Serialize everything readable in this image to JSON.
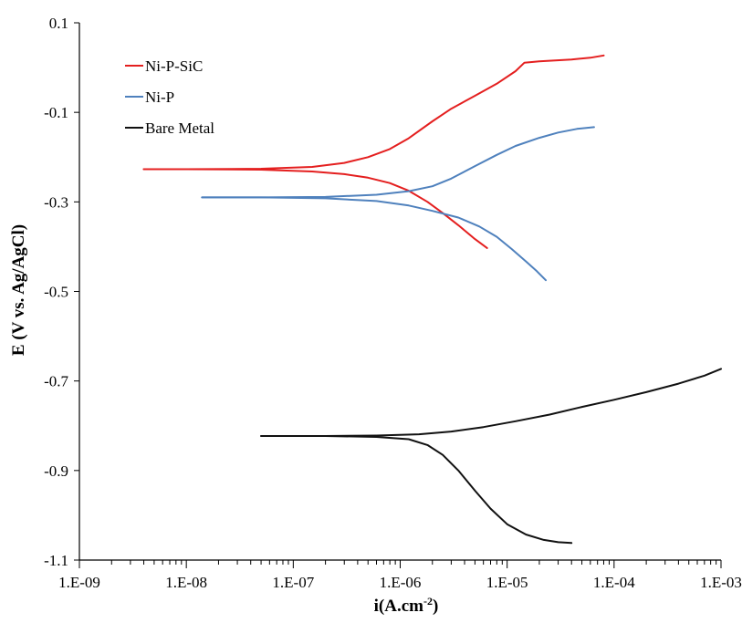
{
  "chart_data": {
    "type": "line",
    "title": "",
    "xlabel": "i(A.cm",
    "xlabel_sup": "-2",
    "xlabel_close": ")",
    "ylabel": "E (V vs. Ag/AgCl)",
    "x_scale": "log",
    "xlim": [
      1e-09,
      0.001
    ],
    "ylim": [
      -1.1,
      0.1
    ],
    "x_ticks": [
      1e-09,
      1e-08,
      1e-07,
      1e-06,
      1e-05,
      0.0001,
      0.001
    ],
    "x_tick_labels": [
      "1.E-09",
      "1.E-08",
      "1.E-07",
      "1.E-06",
      "1.E-05",
      "1.E-04",
      "1.E-03"
    ],
    "y_ticks": [
      0.1,
      -0.1,
      -0.3,
      -0.5,
      -0.7,
      -0.9,
      -1.1
    ],
    "y_tick_labels": [
      "0.1",
      "-0.1",
      "-0.3",
      "-0.5",
      "-0.7",
      "-0.9",
      "-1.1"
    ],
    "grid": false,
    "legend_position": "top-left",
    "series": [
      {
        "name": "Ni-P-SiC",
        "color": "#e41f1f",
        "branches": [
          {
            "x": [
              4e-09,
              1e-08,
              5e-08,
              1.5e-07,
              3e-07,
              5e-07,
              8e-07,
              1.2e-06,
              2e-06,
              3e-06,
              5e-06,
              8e-06,
              1.2e-05,
              1.45e-05,
              2e-05,
              4e-05,
              6e-05,
              8e-05
            ],
            "y": [
              -0.227,
              -0.227,
              -0.226,
              -0.222,
              -0.213,
              -0.2,
              -0.182,
              -0.158,
              -0.12,
              -0.092,
              -0.063,
              -0.036,
              -0.008,
              0.011,
              0.014,
              0.018,
              0.022,
              0.027
            ]
          },
          {
            "x": [
              4e-09,
              1e-08,
              5e-08,
              1.5e-07,
              3e-07,
              5e-07,
              8e-07,
              1.2e-06,
              1.8e-06,
              2.5e-06,
              3.5e-06,
              5e-06,
              6.5e-06
            ],
            "y": [
              -0.227,
              -0.227,
              -0.228,
              -0.232,
              -0.238,
              -0.246,
              -0.258,
              -0.275,
              -0.3,
              -0.325,
              -0.352,
              -0.383,
              -0.403
            ]
          }
        ]
      },
      {
        "name": "Ni-P",
        "color": "#4f81bd",
        "branches": [
          {
            "x": [
              1.4e-08,
              5e-08,
              2e-07,
              6e-07,
              1.2e-06,
              2e-06,
              3e-06,
              5e-06,
              8e-06,
              1.2e-05,
              2e-05,
              3e-05,
              4.5e-05,
              6.5e-05
            ],
            "y": [
              -0.29,
              -0.29,
              -0.289,
              -0.284,
              -0.276,
              -0.265,
              -0.248,
              -0.22,
              -0.195,
              -0.175,
              -0.157,
              -0.145,
              -0.137,
              -0.133
            ]
          },
          {
            "x": [
              1.4e-08,
              5e-08,
              2e-07,
              6e-07,
              1.2e-06,
              2e-06,
              3.5e-06,
              5.5e-06,
              8e-06,
              1.1e-05,
              1.5e-05,
              1.9e-05,
              2.3e-05
            ],
            "y": [
              -0.29,
              -0.29,
              -0.292,
              -0.298,
              -0.308,
              -0.32,
              -0.335,
              -0.355,
              -0.378,
              -0.405,
              -0.433,
              -0.455,
              -0.475
            ]
          }
        ]
      },
      {
        "name": "Bare Metal",
        "color": "#111111",
        "branches": [
          {
            "x": [
              5e-08,
              2e-07,
              6e-07,
              1.5e-06,
              3e-06,
              6e-06,
              1.2e-05,
              2.5e-05,
              5e-05,
              0.0001,
              0.0002,
              0.0004,
              0.0007,
              0.001
            ],
            "y": [
              -0.823,
              -0.823,
              -0.822,
              -0.819,
              -0.813,
              -0.803,
              -0.79,
              -0.775,
              -0.758,
              -0.742,
              -0.725,
              -0.706,
              -0.688,
              -0.673
            ]
          },
          {
            "x": [
              5e-08,
              2e-07,
              6e-07,
              1.2e-06,
              1.8e-06,
              2.5e-06,
              3.5e-06,
              5e-06,
              7e-06,
              1e-05,
              1.5e-05,
              2.2e-05,
              3e-05,
              4e-05
            ],
            "y": [
              -0.823,
              -0.823,
              -0.825,
              -0.83,
              -0.843,
              -0.865,
              -0.9,
              -0.945,
              -0.985,
              -1.02,
              -1.043,
              -1.055,
              -1.06,
              -1.062
            ]
          }
        ]
      }
    ]
  }
}
